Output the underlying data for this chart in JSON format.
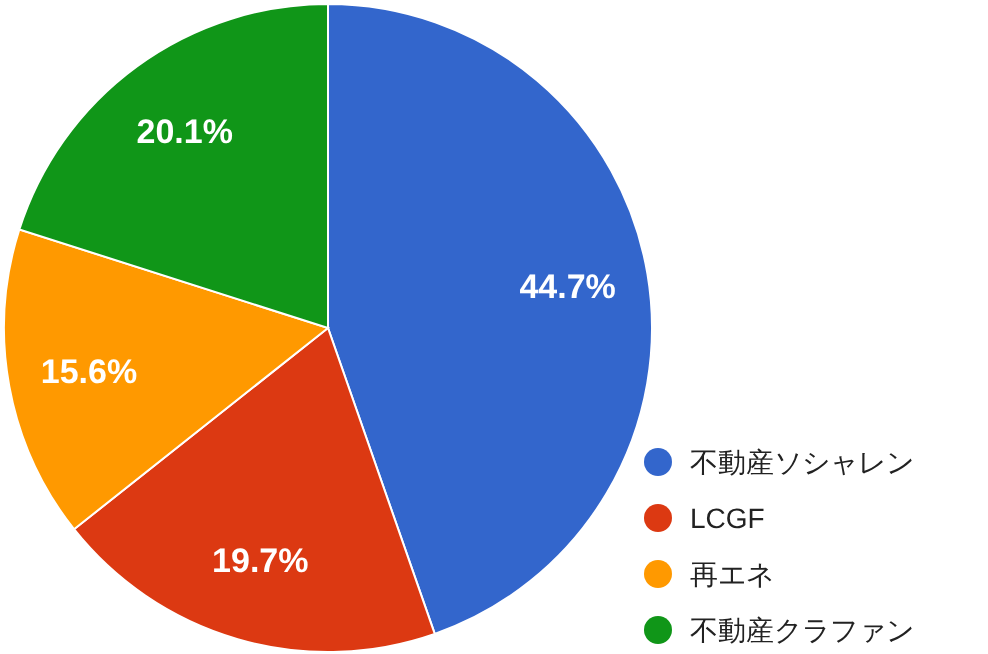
{
  "chart_data": {
    "type": "pie",
    "categories": [
      "不動産ソシャレン",
      "LCGF",
      "再エネ",
      "不動産クラファン"
    ],
    "values": [
      44.7,
      19.7,
      15.6,
      20.1
    ],
    "colors": [
      "#3366cc",
      "#dc3912",
      "#ff9900",
      "#109618"
    ],
    "value_labels": [
      "44.7%",
      "19.7%",
      "15.6%",
      "20.1%"
    ],
    "legend": "bottom right"
  }
}
